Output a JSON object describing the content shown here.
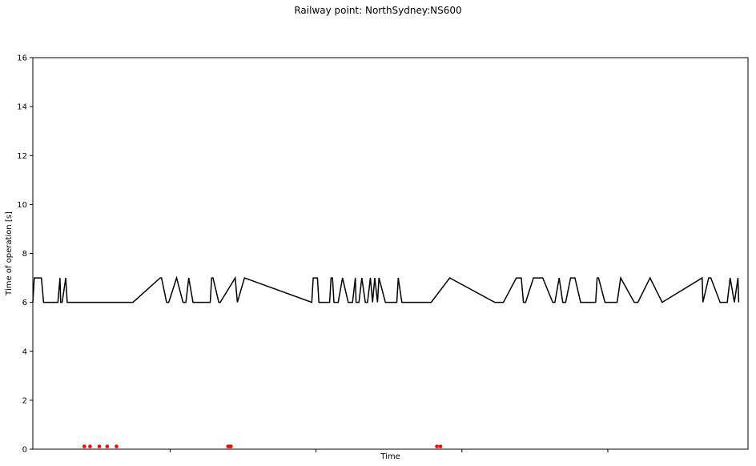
{
  "chart_data": {
    "type": "line",
    "title": "Railway point: NorthSydney:NS600",
    "xlabel": "Time",
    "ylabel": "Time of operation [s]",
    "ylim": [
      0,
      16
    ],
    "xlim": [
      0,
      1000
    ],
    "yticks": [
      0,
      2,
      4,
      6,
      8,
      10,
      12,
      14,
      16
    ],
    "xticks": [
      192,
      396,
      600,
      804
    ],
    "xtick_labels_shown": false,
    "grid": false,
    "legend": "none",
    "colors": {
      "line": "#000000",
      "markers": "#ff0000"
    },
    "series": [
      {
        "style": "line",
        "x": [
          0,
          2,
          12,
          15,
          35,
          38,
          39,
          41,
          46,
          48,
          73,
          140,
          178,
          180,
          187,
          190,
          201,
          210,
          214,
          218,
          224,
          246,
          248,
          250,
          252,
          260,
          262,
          283,
          286,
          296,
          390,
          392,
          398,
          400,
          415,
          417,
          419,
          421,
          427,
          433,
          441,
          447,
          451,
          452,
          456,
          460,
          465,
          468,
          472,
          475,
          478,
          482,
          484,
          493,
          509,
          511,
          516,
          557,
          583,
          646,
          648,
          658,
          676,
          683,
          686,
          689,
          700,
          713,
          727,
          730,
          736,
          741,
          745,
          752,
          758,
          766,
          785,
          787,
          789,
          791,
          800,
          817,
          822,
          822,
          841,
          846,
          863,
          880,
          936,
          937,
          945,
          948,
          961,
          971,
          975,
          981,
          986,
          987
        ],
        "y": [
          6,
          7,
          7,
          6,
          6,
          7,
          6,
          6,
          7,
          6,
          6,
          6,
          7,
          7,
          6,
          6,
          7,
          6,
          6,
          7,
          6,
          6,
          6,
          7,
          7,
          6,
          6,
          7,
          6,
          7,
          6,
          7,
          7,
          6,
          6,
          7,
          7,
          6,
          6,
          7,
          6,
          6,
          7,
          6,
          6,
          7,
          6,
          6,
          7,
          6,
          7,
          6,
          7,
          6,
          6,
          7,
          6,
          6,
          7,
          6,
          6,
          6,
          7,
          7,
          6,
          6,
          7,
          7,
          6,
          6,
          7,
          6,
          6,
          7,
          7,
          6,
          6,
          6,
          7,
          7,
          6,
          6,
          7,
          7,
          6,
          6,
          7,
          6,
          7,
          6,
          7,
          7,
          6,
          6,
          7,
          6,
          7,
          6
        ]
      },
      {
        "style": "markers",
        "x": [
          72,
          80,
          93,
          104,
          117,
          273,
          275,
          277,
          565,
          570
        ],
        "y": [
          0.08,
          0.08,
          0.08,
          0.08,
          0.08,
          0.08,
          0.08,
          0.08,
          0.08,
          0.08
        ]
      }
    ]
  }
}
